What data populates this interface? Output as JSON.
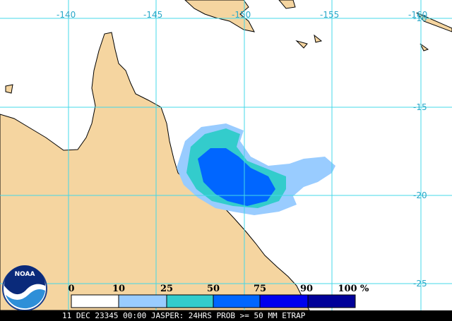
{
  "map": {
    "longitude_labels": [
      "-140",
      "-145",
      "-150",
      "-155",
      "-160"
    ],
    "latitude_labels": [
      "-10",
      "-15",
      "-20",
      "-25"
    ]
  },
  "legend": {
    "labels": [
      "0",
      "10",
      "25",
      "50",
      "75",
      "90",
      "100"
    ],
    "unit": "%"
  },
  "footer": "11 DEC 23345 00:00 JASPER: 24HRS PROB >= 50 MM ETRAP",
  "logo": "NOAA"
}
